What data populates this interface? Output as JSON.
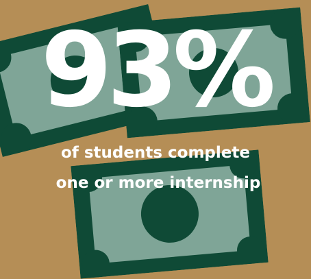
{
  "colors": {
    "background": "#b58e56",
    "bill_dark": "#0f4a36",
    "bill_light": "#7fa597",
    "text": "#ffffff"
  },
  "stat": {
    "value": "93%",
    "caption_line1": "of students complete",
    "caption_line2": "one or more internship"
  },
  "icons": [
    "dollar-bill-icon",
    "dollar-bill-icon",
    "dollar-bill-icon"
  ]
}
